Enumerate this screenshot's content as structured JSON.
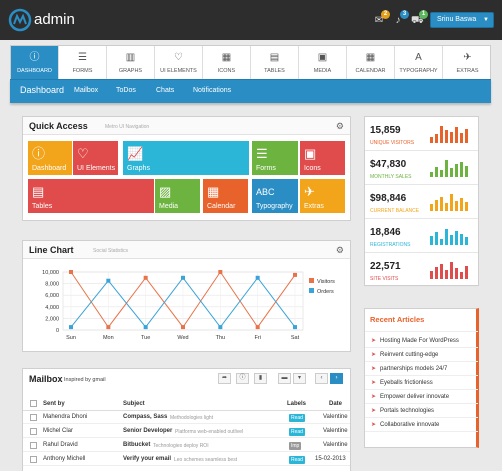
{
  "app": {
    "title": "admin"
  },
  "topbar": {
    "badges": [
      {
        "icon": "envelope-icon",
        "count": "2",
        "color": "#e5a01a"
      },
      {
        "icon": "bell-icon",
        "count": "3",
        "color": "#2a8dc4"
      },
      {
        "icon": "cart-icon",
        "count": "1",
        "color": "#5cb85c"
      }
    ],
    "user_label": "Srinu Baswa"
  },
  "tabs": [
    {
      "label": "Dashboard",
      "icon": "info-icon",
      "active": true
    },
    {
      "label": "Forms",
      "icon": "list-icon"
    },
    {
      "label": "Graphs",
      "icon": "chart-icon"
    },
    {
      "label": "UI Elements",
      "icon": "heart-icon"
    },
    {
      "label": "Icons",
      "icon": "grid-icon"
    },
    {
      "label": "Tables",
      "icon": "table-icon"
    },
    {
      "label": "Media",
      "icon": "film-icon"
    },
    {
      "label": "Calendar",
      "icon": "calendar-icon"
    },
    {
      "label": "Typography",
      "icon": "font-icon"
    },
    {
      "label": "Extras",
      "icon": "plane-icon"
    }
  ],
  "subnav": {
    "current": "Dashboard",
    "items": [
      "Mailbox",
      "ToDos",
      "Chats",
      "Notifications"
    ]
  },
  "quick_access": {
    "title": "Quick Access",
    "subtitle": "Metro UI Navigation",
    "tiles": [
      {
        "label": "Dashboard",
        "color": "#f2a51a",
        "icon": "info-icon"
      },
      {
        "label": "UI Elements",
        "color": "#e04b4b",
        "icon": "heart-icon"
      },
      {
        "label": "Graphs",
        "color": "#2bb6d8",
        "icon": "chart-icon"
      },
      {
        "label": "Forms",
        "color": "#6db33f",
        "icon": "list-icon"
      },
      {
        "label": "Icons",
        "color": "#e04b4b",
        "icon": "briefcase-icon"
      },
      {
        "label": "Tables",
        "color": "#e04b4b",
        "icon": "table-icon"
      },
      {
        "label": "Media",
        "color": "#6db33f",
        "icon": "image-icon"
      },
      {
        "label": "Calendar",
        "color": "#e8622c",
        "icon": "calendar-icon"
      },
      {
        "label": "Typography",
        "color": "#2a8dc4",
        "icon": "font-icon"
      },
      {
        "label": "Extras",
        "color": "#f2a51a",
        "icon": "plane-icon"
      }
    ]
  },
  "line_chart": {
    "title": "Line Chart",
    "subtitle": "Social Statistics"
  },
  "chart_data": {
    "type": "line",
    "categories": [
      "Sun",
      "Mon",
      "Tue",
      "Wed",
      "Thu",
      "Fri",
      "Sat"
    ],
    "yticks": [
      "10,000",
      "8,000",
      "6,000",
      "4,000",
      "2,000",
      "0"
    ],
    "ylim": [
      0,
      10000
    ],
    "grid": true,
    "legend": "right",
    "series": [
      {
        "name": "Visitors",
        "color": "#e8734a",
        "values": [
          10000,
          500,
          9000,
          500,
          10000,
          500,
          9500
        ]
      },
      {
        "name": "Orders",
        "color": "#3aa3d8",
        "values": [
          500,
          8500,
          500,
          9000,
          500,
          9000,
          500
        ]
      }
    ]
  },
  "stats": [
    {
      "value": "15,859",
      "label": "Unique Visitors",
      "color": "#e8622c",
      "bars": [
        0.35,
        0.5,
        0.95,
        0.7,
        0.6,
        0.9,
        0.55,
        0.75
      ]
    },
    {
      "value": "$47,830",
      "label": "Monthly Sales",
      "color": "#6db33f",
      "bars": [
        0.3,
        0.55,
        0.4,
        0.95,
        0.5,
        0.7,
        0.85,
        0.6
      ]
    },
    {
      "value": "$98,846",
      "label": "Current Balance",
      "color": "#f2a51a",
      "bars": [
        0.4,
        0.6,
        0.8,
        0.45,
        0.95,
        0.55,
        0.7,
        0.5
      ]
    },
    {
      "value": "18,846",
      "label": "Registrations",
      "color": "#2bb6d8",
      "bars": [
        0.5,
        0.7,
        0.35,
        0.9,
        0.55,
        0.8,
        0.6,
        0.45
      ]
    },
    {
      "value": "22,571",
      "label": "Site Visits",
      "color": "#e04b4b",
      "bars": [
        0.45,
        0.65,
        0.85,
        0.5,
        0.95,
        0.6,
        0.4,
        0.7
      ]
    }
  ],
  "recent_articles": {
    "title": "Recent Articles",
    "items": [
      "Hosting Made For WordPress",
      "Reinvent cutting-edge",
      "partnerships models 24/7",
      "Eyeballs frictionless",
      "Empower deliver innovate",
      "Portals technologies",
      "Collaborative innovate"
    ]
  },
  "mailbox": {
    "title": "Mailbox",
    "subtitle": "Inspired by gmail",
    "toolbar": [
      "share-icon",
      "info-icon",
      "trash-icon",
      "folder-icon",
      "tag-icon",
      "prev-icon",
      "next-icon"
    ],
    "headers": {
      "sent_by": "Sent by",
      "subject": "Subject",
      "labels": "Labels",
      "date": "Date"
    },
    "rows": [
      {
        "sender": "Mahendra Dhoni",
        "subject": "Compass, Sass",
        "preview": "Methodologies light",
        "label": "Read",
        "label_color": "#2bb6d8",
        "date": "Valentine"
      },
      {
        "sender": "Michel Clar",
        "subject": "Senior Developer",
        "preview": "Platforms web-enabled outlivel",
        "label": "Read",
        "label_color": "#2bb6d8",
        "date": "Valentine"
      },
      {
        "sender": "Rahul Dravid",
        "subject": "Bitbucket",
        "preview": "Technologies deploy ROI",
        "label": "Imp",
        "label_color": "#999999",
        "date": "Valentine"
      },
      {
        "sender": "Anthony Michell",
        "subject": "Verify your email",
        "preview": "Leo schemes seamless best",
        "label": "Read",
        "label_color": "#2bb6d8",
        "date": "15-02-2013"
      }
    ]
  }
}
